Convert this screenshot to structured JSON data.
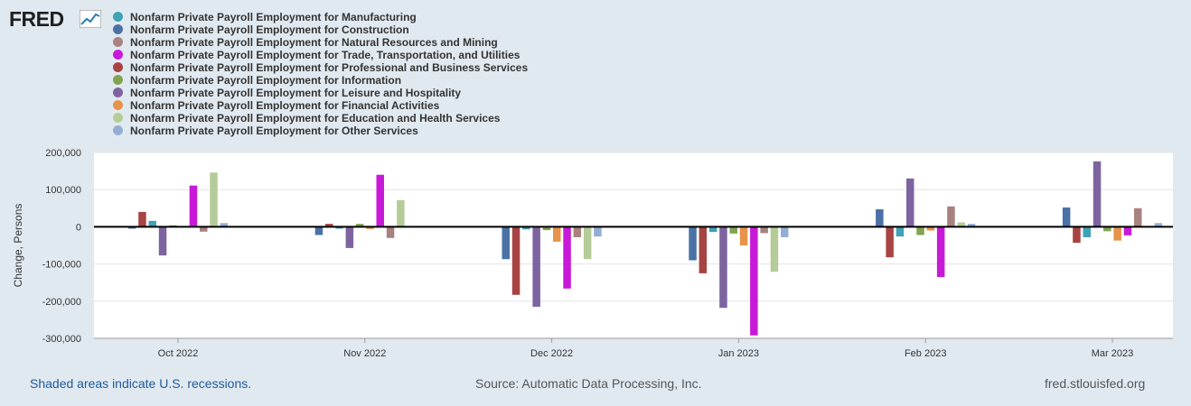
{
  "logo": {
    "text": "FRED"
  },
  "legend": {
    "items": [
      {
        "label": "Nonfarm Private Payroll Employment for Manufacturing",
        "color": "#3fa2b5"
      },
      {
        "label": "Nonfarm Private Payroll Employment for Construction",
        "color": "#4a72a6"
      },
      {
        "label": "Nonfarm Private Payroll Employment for Natural Resources and Mining",
        "color": "#a88280"
      },
      {
        "label": "Nonfarm Private Payroll Employment for Trade, Transportation, and Utilities",
        "color": "#c819d8"
      },
      {
        "label": "Nonfarm Private Payroll Employment for Professional and Business Services",
        "color": "#a84343"
      },
      {
        "label": "Nonfarm Private Payroll Employment for Information",
        "color": "#82a34f"
      },
      {
        "label": "Nonfarm Private Payroll Employment for Leisure and Hospitality",
        "color": "#7d64a0"
      },
      {
        "label": "Nonfarm Private Payroll Employment for Financial Activities",
        "color": "#e8934a"
      },
      {
        "label": "Nonfarm Private Payroll Employment for Education and Health Services",
        "color": "#b5cc98"
      },
      {
        "label": "Nonfarm Private Payroll Employment for Other Services",
        "color": "#92aed4"
      }
    ]
  },
  "chart_data": {
    "type": "bar",
    "title": "",
    "xlabel": "",
    "ylabel": "Change, Persons",
    "ylim": [
      -300000,
      200000
    ],
    "yticks": [
      200000,
      100000,
      0,
      -100000,
      -200000,
      -300000
    ],
    "ytick_labels": [
      "200,000",
      "100,000",
      "0",
      "-100,000",
      "-200,000",
      "-300,000"
    ],
    "categories": [
      "Oct 2022",
      "Nov 2022",
      "Dec 2022",
      "Jan 2023",
      "Feb 2023",
      "Mar 2023"
    ],
    "series": [
      {
        "name": "Construction",
        "color": "#4a72a6",
        "values": [
          -5000,
          -22000,
          -87000,
          -90000,
          47000,
          52000
        ]
      },
      {
        "name": "Professional and Business Services",
        "color": "#a84343",
        "values": [
          40000,
          8000,
          -183000,
          -125000,
          -82000,
          -43000
        ]
      },
      {
        "name": "Manufacturing",
        "color": "#3fa2b5",
        "values": [
          16000,
          -5000,
          -7000,
          -14000,
          -26000,
          -28000
        ]
      },
      {
        "name": "Leisure and Hospitality",
        "color": "#7d64a0",
        "values": [
          -77000,
          -57000,
          -215000,
          -218000,
          130000,
          176000
        ]
      },
      {
        "name": "Information",
        "color": "#82a34f",
        "values": [
          4000,
          8000,
          -9000,
          -18000,
          -22000,
          -12000
        ]
      },
      {
        "name": "Financial Activities",
        "color": "#e8934a",
        "values": [
          0,
          -6000,
          -40000,
          -50000,
          -10000,
          -37000
        ]
      },
      {
        "name": "Trade, Transportation, and Utilities",
        "color": "#c819d8",
        "values": [
          111000,
          140000,
          -166000,
          -292000,
          -135000,
          -23000
        ]
      },
      {
        "name": "Natural Resources and Mining",
        "color": "#a88280",
        "values": [
          -13000,
          -30000,
          -28000,
          -17000,
          55000,
          50000
        ]
      },
      {
        "name": "Education and Health Services",
        "color": "#b5cc98",
        "values": [
          146000,
          72000,
          -87000,
          -121000,
          12000,
          0
        ]
      },
      {
        "name": "Other Services",
        "color": "#92aed4",
        "values": [
          10000,
          0,
          -26000,
          -28000,
          8000,
          10000
        ]
      }
    ]
  },
  "footer": {
    "left": "Shaded areas indicate U.S. recessions.",
    "middle": "Source: Automatic Data Processing, Inc.",
    "right": "fred.stlouisfed.org"
  }
}
